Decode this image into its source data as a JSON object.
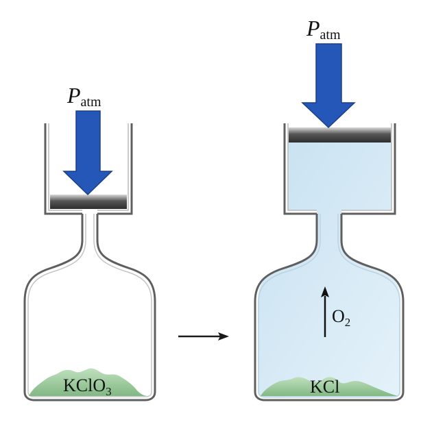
{
  "pressure": {
    "symbol": "P",
    "subscript": "atm"
  },
  "before": {
    "solid_label": "KClO",
    "solid_label_subscript": "3"
  },
  "after": {
    "solid_label": "KCl",
    "gas_label": "O",
    "gas_label_subscript": "2"
  },
  "colors": {
    "pressure_arrow": "#2457b8",
    "gas_fill": "#cfe6f3",
    "solid": "#9fcf9f",
    "piston": "#555555",
    "container_outline": "#5f5f5f"
  }
}
